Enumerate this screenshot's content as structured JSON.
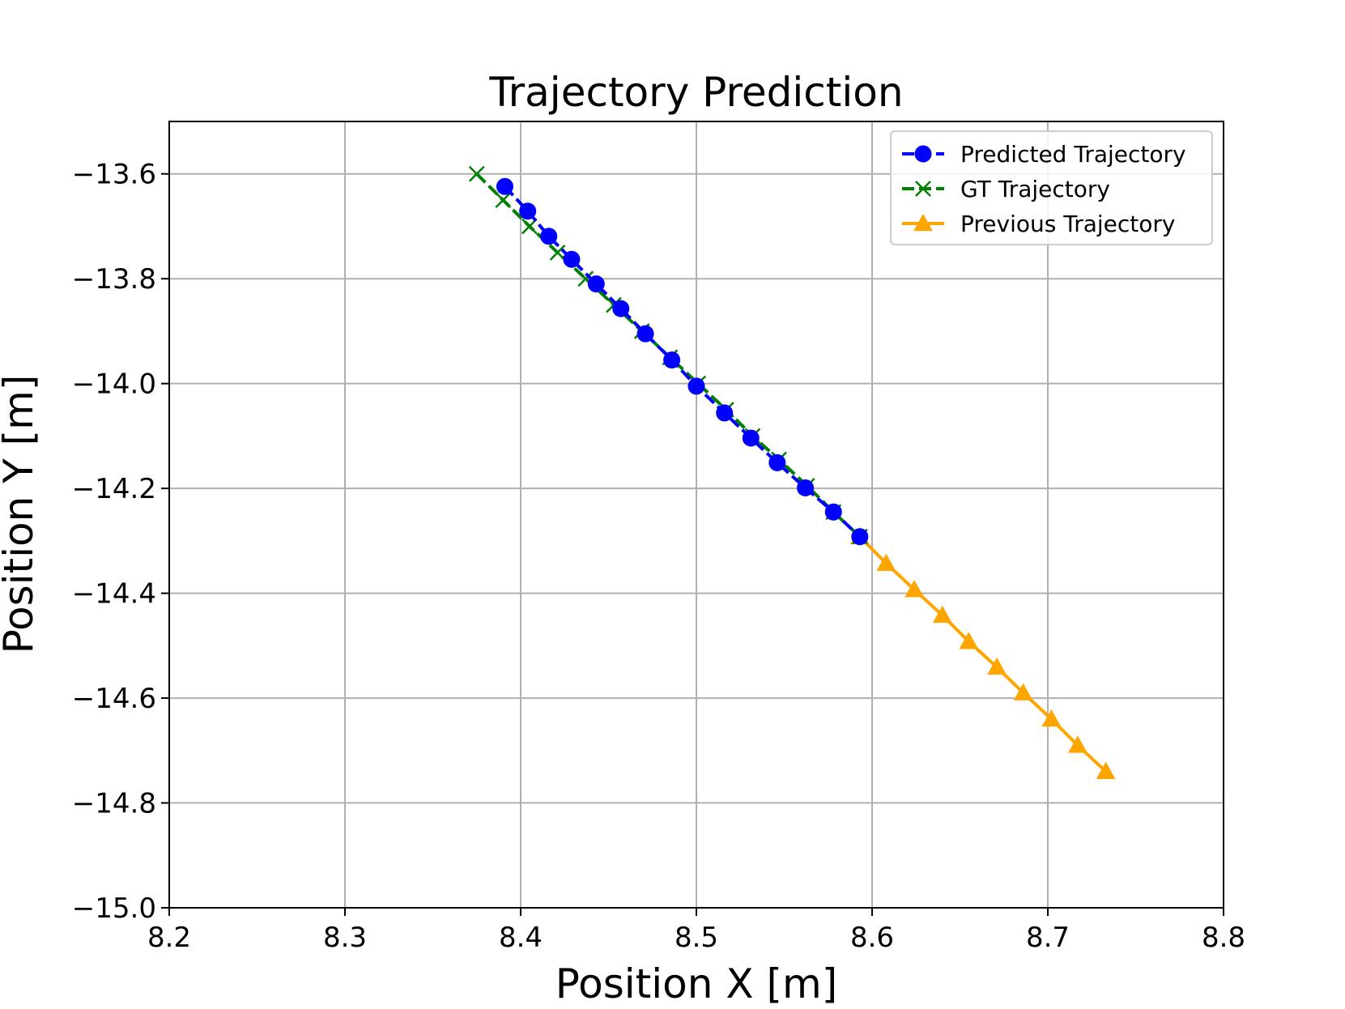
{
  "chart_data": {
    "type": "line",
    "title": "Trajectory Prediction",
    "xlabel": "Position X [m]",
    "ylabel": "Position Y [m]",
    "xlim": [
      8.2,
      8.8
    ],
    "ylim": [
      -15.0,
      -13.5
    ],
    "xticks": [
      8.2,
      8.3,
      8.4,
      8.5,
      8.6,
      8.7,
      8.8
    ],
    "yticks": [
      -13.6,
      -13.8,
      -14.0,
      -14.2,
      -14.4,
      -14.6,
      -14.8,
      -15.0
    ],
    "xtick_labels": [
      "8.2",
      "8.3",
      "8.4",
      "8.5",
      "8.6",
      "8.7",
      "8.8"
    ],
    "ytick_labels": [
      "−13.6",
      "−13.8",
      "−14.0",
      "−14.2",
      "−14.4",
      "−14.6",
      "−14.8",
      "−15.0"
    ],
    "grid": true,
    "legend_position": "top-right",
    "series": [
      {
        "name": "Predicted Trajectory",
        "color": "#0000ff",
        "marker": "circle",
        "line_style": "dashed",
        "x": [
          8.391,
          8.404,
          8.416,
          8.429,
          8.443,
          8.457,
          8.471,
          8.486,
          8.5,
          8.516,
          8.531,
          8.546,
          8.562,
          8.578,
          8.593
        ],
        "y": [
          -13.624,
          -13.671,
          -13.719,
          -13.763,
          -13.81,
          -13.857,
          -13.905,
          -13.955,
          -14.005,
          -14.056,
          -14.104,
          -14.151,
          -14.199,
          -14.245,
          -14.292
        ]
      },
      {
        "name": "GT Trajectory",
        "color": "#008000",
        "marker": "x",
        "line_style": "dashed",
        "x": [
          8.375,
          8.39,
          8.405,
          8.421,
          8.437,
          8.453,
          8.469,
          8.485,
          8.501,
          8.517,
          8.532,
          8.547,
          8.563,
          8.578,
          8.593
        ],
        "y": [
          -13.6,
          -13.65,
          -13.7,
          -13.75,
          -13.8,
          -13.85,
          -13.9,
          -13.95,
          -14.0,
          -14.05,
          -14.1,
          -14.145,
          -14.195,
          -14.245,
          -14.292
        ]
      },
      {
        "name": "Previous Trajectory",
        "color": "#ffa500",
        "marker": "triangle",
        "line_style": "solid",
        "x": [
          8.593,
          8.608,
          8.624,
          8.64,
          8.655,
          8.671,
          8.686,
          8.702,
          8.717,
          8.733
        ],
        "y": [
          -14.292,
          -14.343,
          -14.393,
          -14.442,
          -14.492,
          -14.541,
          -14.59,
          -14.64,
          -14.69,
          -14.74
        ]
      }
    ]
  }
}
